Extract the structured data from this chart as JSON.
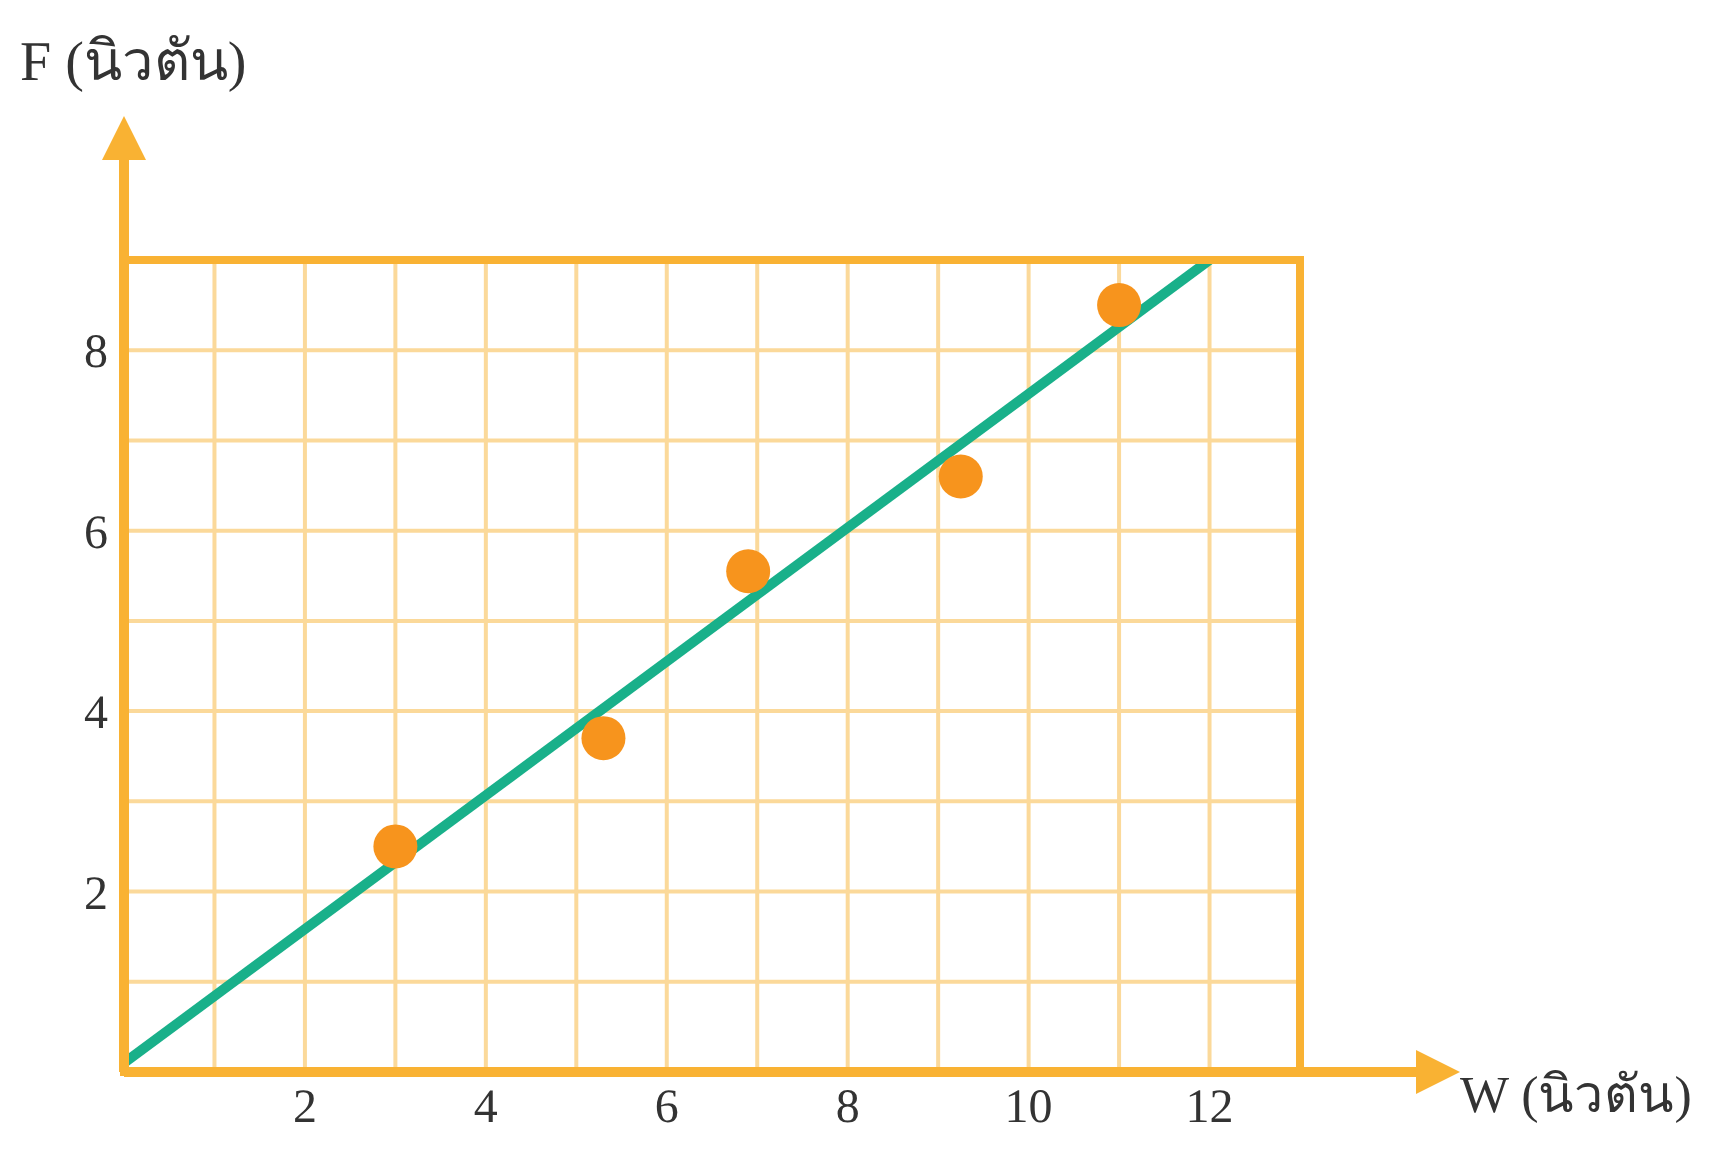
{
  "chart_data": {
    "type": "scatter",
    "xlabel": "W (นิวตัน)",
    "ylabel": "F (นิวตัน)",
    "xlim": [
      0,
      13
    ],
    "ylim": [
      0,
      9
    ],
    "xticks": [
      {
        "value": 1,
        "label": null
      },
      2,
      {
        "value": 3,
        "label": null
      },
      4,
      {
        "value": 5,
        "label": null
      },
      6,
      {
        "value": 7,
        "label": null
      },
      8,
      {
        "value": 9,
        "label": null
      },
      10,
      {
        "value": 11,
        "label": null
      },
      12
    ],
    "yticks": [
      {
        "value": 1,
        "label": null
      },
      2,
      {
        "value": 3,
        "label": null
      },
      4,
      {
        "value": 5,
        "label": null
      },
      6,
      {
        "value": 7,
        "label": null
      },
      8
    ],
    "grid": true,
    "marker": "circle",
    "series": [
      {
        "color": "#f7941d",
        "x": [
          3,
          5.3,
          6.9,
          9.25,
          11
        ],
        "values": [
          2.5,
          3.7,
          5.55,
          6.6,
          8.5
        ]
      },
      {
        "type": "line",
        "color": "#19b08a",
        "x": [
          0,
          12
        ],
        "values": [
          0.1,
          9
        ],
        "marker": "none"
      }
    ]
  }
}
